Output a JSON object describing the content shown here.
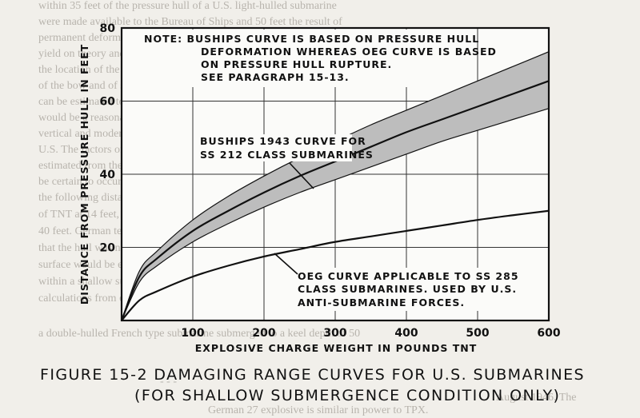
{
  "background_text": [
    "within 35 feet of the pressure hull of a U.S. light-hulled submarine",
    "were made available to the Bureau of Ships and 50 feet the result of",
    "permanent deformation of the pressure hull. As this curve was made to",
    "yield on theory and experiment. Its estimated, depending upon",
    "the location of the charge relative to the submarine at a depth",
    "of the bow and of some of the heavy damage to submarines. The charges",
    "can be estimated to 100 feet and beyond. It appears that 10 feet",
    "would be a reasonable value of the pressure hull, in the zones of",
    "vertical and moderate ship depth, of the charges of the size used against",
    "U.S. The factors of the curve used by the Allied Forces are British",
    "estimated from their war experience, that pressure hull rupture would",
    "be certain to occur on submarines of contemporary construction within",
    "the following distances of explosive with standard charges: 100 pounds",
    "of TNT at 14 feet, 300 pounds of TNT at 20 feet, 600 pounds of TNT at",
    "40 feet. German tests on U-448 in June and December of 1943 indicated",
    "that the hull was not ruptured by explosions at 26 feet below the",
    "surface would be expected to rupture the pressure hull of a submarine when",
    "within a shallow submergence of about 30 feet of the surface.-- French",
    "calculations from explosive tests conducted in 1934 indicated that",
    "a double-hulled French type submarine submerged to a keel depth of 50",
    "- - -",
    "August 1946. The",
    "German 27 explosive is similar in power to TPX."
  ],
  "caption": {
    "line1": "FIGURE 15-2  DAMAGING RANGE CURVES FOR U.S. SUBMARINES",
    "line2": "(FOR SHALLOW SUBMERGENCE CONDITION ONLY)"
  },
  "chart_data": {
    "type": "line",
    "xlabel": "EXPLOSIVE CHARGE WEIGHT IN POUNDS TNT",
    "ylabel": "DISTANCE FROM PRESSURE HULL IN FEET",
    "xlim": [
      0,
      600
    ],
    "ylim": [
      0,
      80
    ],
    "xticks": [
      100,
      200,
      300,
      400,
      500,
      600
    ],
    "yticks": [
      20,
      40,
      60,
      80
    ],
    "grid": true,
    "note": [
      "NOTE: BUSHIPS CURVE IS BASED ON PRESSURE HULL",
      "DEFORMATION WHEREAS OEG CURVE IS BASED",
      "ON PRESSURE HULL RUPTURE.",
      "SEE PARAGRAPH 15-13."
    ],
    "series": [
      {
        "name": "BUSHIPS 1943 CURVE FOR SS 212 CLASS SUBMARINES",
        "label_lines": [
          "BUSHIPS 1943 CURVE FOR",
          "SS 212 CLASS SUBMARINES"
        ],
        "style": "band",
        "x": [
          0,
          25,
          50,
          100,
          150,
          200,
          250,
          300,
          350,
          400,
          450,
          500,
          550,
          600
        ],
        "y": [
          0,
          12,
          17,
          24.5,
          30,
          35,
          39.5,
          43.5,
          47.5,
          51.5,
          55,
          58.5,
          62,
          65.5
        ],
        "upper": [
          0,
          13.5,
          19,
          27.5,
          34,
          39.5,
          44.5,
          49,
          53.5,
          57.5,
          61.5,
          65.5,
          69.5,
          73.5
        ],
        "lower": [
          0,
          10.5,
          15,
          21.5,
          26.5,
          31,
          35,
          38.5,
          42,
          45.5,
          49,
          52,
          55,
          58
        ]
      },
      {
        "name": "OEG CURVE APPLICABLE TO SS 285 CLASS SUBMARINES. USED BY U.S. ANTI-SUBMARINE FORCES.",
        "label_lines": [
          "OEG CURVE APPLICABLE TO SS 285",
          "CLASS SUBMARINES. USED BY U.S.",
          "ANTI-SUBMARINE FORCES."
        ],
        "style": "line",
        "x": [
          0,
          25,
          50,
          100,
          150,
          200,
          250,
          300,
          350,
          400,
          450,
          500,
          550,
          600
        ],
        "y": [
          0,
          5.5,
          8,
          12,
          15,
          17.5,
          19.5,
          21.5,
          23,
          24.5,
          26,
          27.5,
          28.8,
          30
        ]
      }
    ]
  }
}
